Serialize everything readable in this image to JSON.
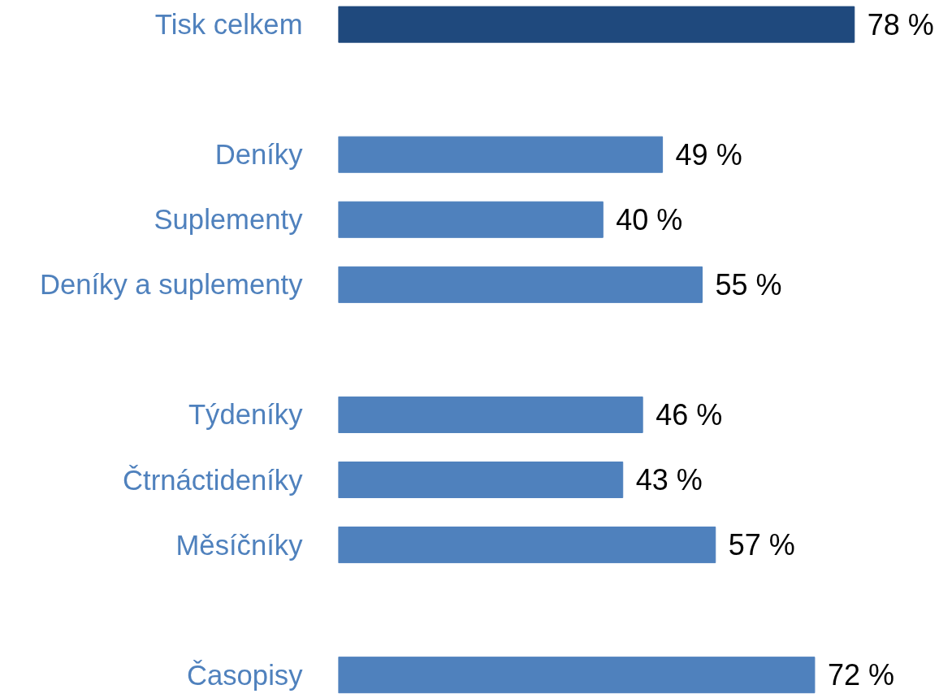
{
  "chart_data": {
    "type": "bar",
    "orientation": "horizontal",
    "categories": [
      "Tisk celkem",
      null,
      "Deníky",
      "Suplementy",
      "Deníky a suplementy",
      null,
      "Týdeníky",
      "Čtrnáctideníky",
      "Měsíčníky",
      null,
      "Časopisy"
    ],
    "values": [
      78,
      null,
      49,
      40,
      55,
      null,
      46,
      43,
      57,
      null,
      72
    ],
    "colors": [
      "#1f497d",
      null,
      "#4f81bd",
      "#4f81bd",
      "#4f81bd",
      null,
      "#4f81bd",
      "#4f81bd",
      "#4f81bd",
      null,
      "#4f81bd"
    ],
    "value_labels": [
      "78 %",
      null,
      "49 %",
      "40 %",
      "55 %",
      null,
      "46 %",
      "43 %",
      "57 %",
      null,
      "72 %"
    ],
    "grid": false
  }
}
